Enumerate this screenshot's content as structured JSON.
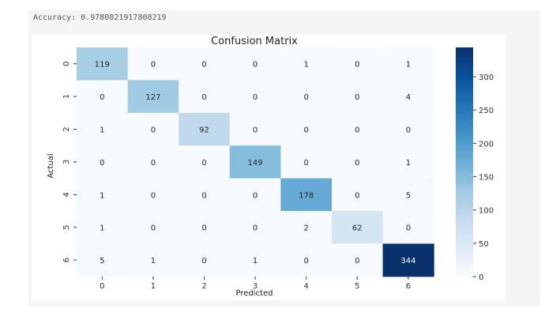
{
  "output": {
    "accuracy_text": "Accuracy: 0.9780821917808219"
  },
  "chart_data": {
    "type": "heatmap",
    "title": "Confusion Matrix",
    "xlabel": "Predicted",
    "ylabel": "Actual",
    "x_tick_labels": [
      "0",
      "1",
      "2",
      "3",
      "4",
      "5",
      "6"
    ],
    "y_tick_labels": [
      "0",
      "1",
      "2",
      "3",
      "4",
      "5",
      "6"
    ],
    "matrix": [
      [
        119,
        0,
        0,
        0,
        1,
        0,
        1
      ],
      [
        0,
        127,
        0,
        0,
        0,
        0,
        4
      ],
      [
        1,
        0,
        92,
        0,
        0,
        0,
        0
      ],
      [
        0,
        0,
        0,
        149,
        0,
        0,
        1
      ],
      [
        1,
        0,
        0,
        0,
        178,
        0,
        5
      ],
      [
        1,
        0,
        0,
        0,
        2,
        62,
        0
      ],
      [
        5,
        1,
        0,
        1,
        0,
        0,
        344
      ]
    ],
    "colormap": "Blues",
    "colorbar": {
      "range": [
        0,
        344
      ],
      "ticks": [
        0,
        50,
        100,
        150,
        200,
        250,
        300
      ],
      "tick_labels": [
        "0",
        "50",
        "100",
        "150",
        "200",
        "250",
        "300"
      ]
    },
    "colors": {
      "low": "#f7fbff",
      "high": "#08306b",
      "text_dark": "#262626",
      "text_light": "#ffffff"
    }
  }
}
